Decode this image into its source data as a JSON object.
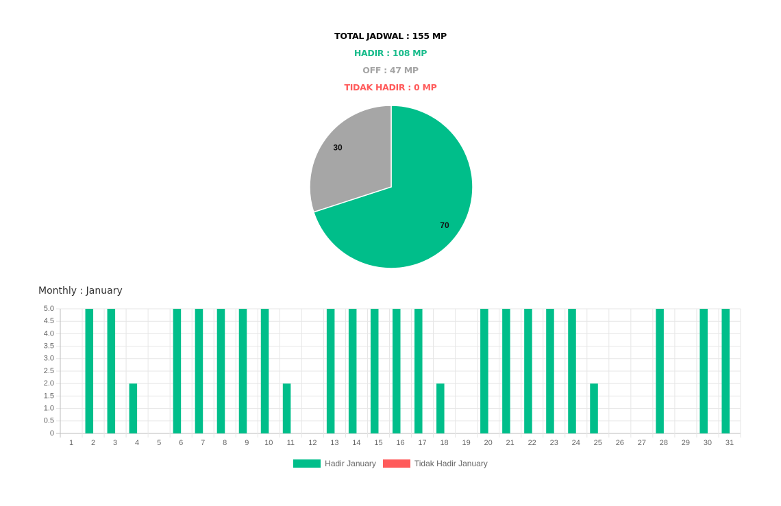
{
  "summary": {
    "total": {
      "text": "TOTAL JADWAL : 155 MP",
      "color": "#000000"
    },
    "hadir": {
      "text": "HADIR : 108 MP",
      "color": "#1abc8c"
    },
    "off": {
      "text": "OFF : 47 MP",
      "color": "#a5a5a5"
    },
    "tidak_hadir": {
      "text": "TIDAK HADIR : 0 MP",
      "color": "#ff5b5b"
    }
  },
  "monthly_title": "Monthly : January",
  "chart_data": [
    {
      "type": "pie",
      "slices": [
        {
          "label": "Hadir",
          "value": 70,
          "color": "#00be8a"
        },
        {
          "label": "Off",
          "value": 30,
          "color": "#a6a6a6"
        }
      ],
      "data_labels": [
        "70",
        "30"
      ]
    },
    {
      "type": "bar",
      "title": "Monthly : January",
      "categories": [
        "1",
        "2",
        "3",
        "4",
        "5",
        "6",
        "7",
        "8",
        "9",
        "10",
        "11",
        "12",
        "13",
        "14",
        "15",
        "16",
        "17",
        "18",
        "19",
        "20",
        "21",
        "22",
        "23",
        "24",
        "25",
        "26",
        "27",
        "28",
        "29",
        "30",
        "31"
      ],
      "series": [
        {
          "name": "Hadir January",
          "color": "#00be8a",
          "values": [
            0,
            5,
            5,
            2,
            0,
            5,
            5,
            5,
            5,
            5,
            2,
            0,
            5,
            5,
            5,
            5,
            5,
            2,
            0,
            5,
            5,
            5,
            5,
            5,
            2,
            0,
            0,
            5,
            0,
            5,
            5
          ]
        },
        {
          "name": "Tidak Hadir January",
          "color": "#ff5b5b",
          "values": [
            0,
            0,
            0,
            0,
            0,
            0,
            0,
            0,
            0,
            0,
            0,
            0,
            0,
            0,
            0,
            0,
            0,
            0,
            0,
            0,
            0,
            0,
            0,
            0,
            0,
            0,
            0,
            0,
            0,
            0,
            0
          ]
        }
      ],
      "ylim": [
        0,
        5
      ],
      "yticks": [
        "0",
        "0.5",
        "1.0",
        "1.5",
        "2.0",
        "2.5",
        "3.0",
        "3.5",
        "4.0",
        "4.5",
        "5.0"
      ],
      "grid": true,
      "legend_position": "bottom"
    }
  ]
}
